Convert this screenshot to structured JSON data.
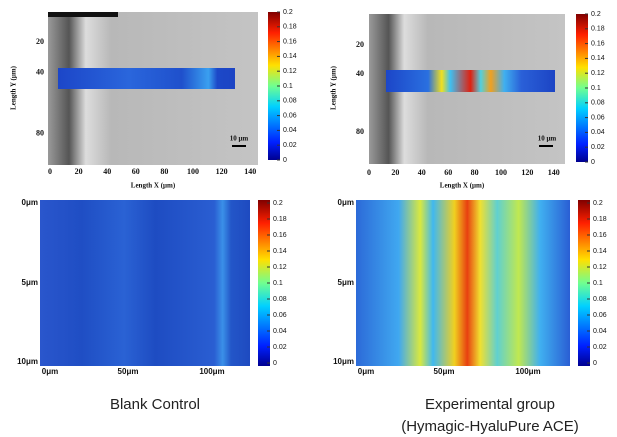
{
  "panels": [
    {
      "x_axis_label": "Length X (μm)",
      "y_axis_label": "Length Y (μm)",
      "xticks": [
        0,
        20,
        40,
        60,
        80,
        100,
        120,
        140
      ],
      "yticks": [
        20,
        40,
        80
      ],
      "scale_bar": "10 μm",
      "colorbar_ticks": [
        0.2,
        0.18,
        0.16,
        0.14,
        0.12,
        0.1,
        0.08,
        0.06,
        0.04,
        0.02,
        0
      ]
    },
    {
      "x_axis_label": "Length X (μm)",
      "y_axis_label": "Length Y (μm)",
      "xticks": [
        0,
        20,
        40,
        60,
        80,
        100,
        120,
        140
      ],
      "yticks": [
        20,
        40,
        80
      ],
      "scale_bar": "10 μm",
      "colorbar_ticks": [
        0.2,
        0.18,
        0.16,
        0.14,
        0.12,
        0.1,
        0.08,
        0.06,
        0.04,
        0.02,
        0
      ]
    }
  ],
  "heatmaps": [
    {
      "y_labels": [
        "0μm",
        "5μm",
        "10μm"
      ],
      "x_labels": [
        "0μm",
        "50μm",
        "100μm"
      ],
      "colorbar_ticks": [
        0.2,
        0.18,
        0.16,
        0.14,
        0.12,
        0.1,
        0.08,
        0.06,
        0.04,
        0.02,
        0
      ]
    },
    {
      "y_labels": [
        "0μm",
        "5μm",
        "10μm"
      ],
      "x_labels": [
        "0μm",
        "50μm",
        "100μm"
      ],
      "colorbar_ticks": [
        0.2,
        0.18,
        0.16,
        0.14,
        0.12,
        0.1,
        0.08,
        0.06,
        0.04,
        0.02,
        0
      ]
    }
  ],
  "captions": [
    {
      "lines": [
        "Blank Control"
      ]
    },
    {
      "lines": [
        "Experimental group",
        "(Hymagic-HyaluPure ACE)"
      ]
    }
  ]
}
